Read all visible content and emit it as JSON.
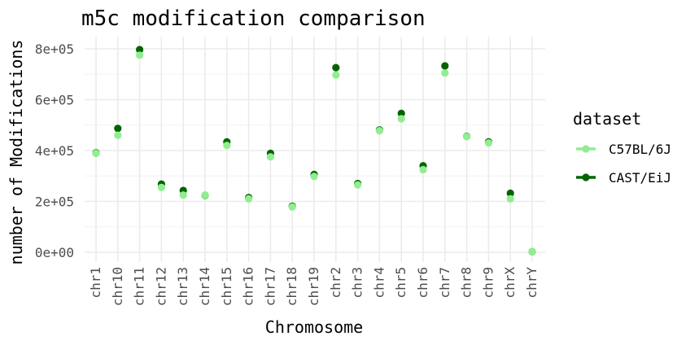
{
  "chart_data": {
    "type": "scatter",
    "title": "m5c modification comparison",
    "xlabel": "Chromosome",
    "ylabel": "number of Modifications",
    "categories": [
      "chr1",
      "chr10",
      "chr11",
      "chr12",
      "chr13",
      "chr14",
      "chr15",
      "chr16",
      "chr17",
      "chr18",
      "chr19",
      "chr2",
      "chr3",
      "chr4",
      "chr5",
      "chr6",
      "chr7",
      "chr8",
      "chr9",
      "chrX",
      "chrY"
    ],
    "ylim": [
      0,
      800000
    ],
    "yticks": [
      0,
      200000,
      400000,
      600000,
      800000
    ],
    "ytick_labels": [
      "0e+00",
      "2e+05",
      "4e+05",
      "6e+05",
      "8e+05"
    ],
    "grid": true,
    "legend": {
      "title": "dataset",
      "position": "right"
    },
    "series": [
      {
        "name": "C57BL/6J",
        "color": "#90ee90",
        "values": [
          389000,
          460000,
          775000,
          255000,
          225000,
          225000,
          420000,
          210000,
          375000,
          178000,
          298000,
          697000,
          265000,
          478000,
          525000,
          325000,
          705000,
          455000,
          430000,
          210000,
          2000
        ]
      },
      {
        "name": "CAST/EiJ",
        "color": "#006400",
        "values": [
          391000,
          487000,
          797000,
          268000,
          243000,
          224000,
          434000,
          215000,
          389000,
          181000,
          306000,
          726000,
          270000,
          481000,
          546000,
          340000,
          733000,
          456000,
          434000,
          232000,
          2000
        ]
      }
    ]
  }
}
